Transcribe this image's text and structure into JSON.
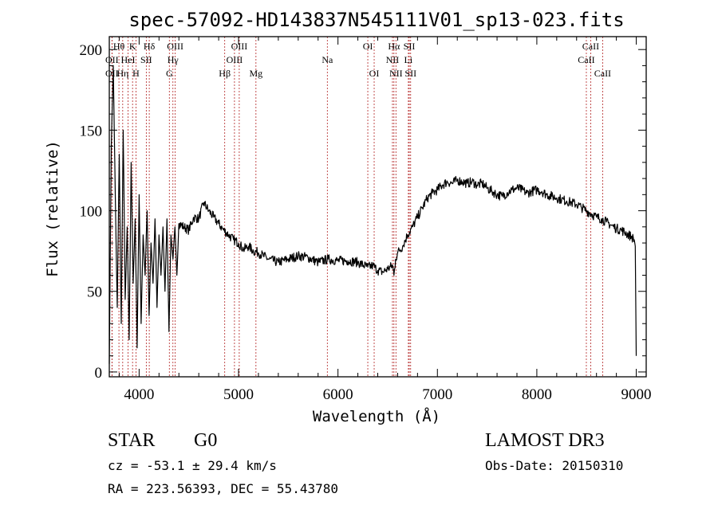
{
  "chart_data": {
    "type": "line",
    "title": "spec-57092-HD143837N545111V01_sp13-023.fits",
    "xlabel": "Wavelength (Å)",
    "ylabel": "Flux (relative)",
    "xlim": [
      3700,
      9100
    ],
    "ylim": [
      -3,
      208
    ],
    "xticks": [
      4000,
      5000,
      6000,
      7000,
      8000,
      9000
    ],
    "yticks": [
      0,
      50,
      100,
      150,
      200
    ],
    "grid": false,
    "series": [
      {
        "name": "flux",
        "x": [
          3700,
          3720,
          3740,
          3760,
          3780,
          3800,
          3820,
          3840,
          3860,
          3880,
          3900,
          3920,
          3940,
          3960,
          3980,
          4000,
          4020,
          4040,
          4060,
          4080,
          4100,
          4120,
          4140,
          4160,
          4180,
          4200,
          4220,
          4240,
          4260,
          4280,
          4300,
          4320,
          4340,
          4360,
          4380,
          4400,
          4450,
          4500,
          4550,
          4600,
          4650,
          4700,
          4750,
          4800,
          4850,
          4900,
          4950,
          5000,
          5050,
          5100,
          5150,
          5200,
          5250,
          5300,
          5400,
          5500,
          5600,
          5700,
          5800,
          5900,
          6000,
          6100,
          6200,
          6300,
          6350,
          6400,
          6450,
          6500,
          6550,
          6563,
          6580,
          6600,
          6650,
          6700,
          6750,
          6800,
          6850,
          6900,
          6950,
          7000,
          7050,
          7100,
          7150,
          7200,
          7250,
          7300,
          7350,
          7400,
          7450,
          7500,
          7550,
          7600,
          7650,
          7700,
          7750,
          7800,
          7850,
          7900,
          7950,
          8000,
          8050,
          8100,
          8150,
          8200,
          8250,
          8300,
          8350,
          8400,
          8450,
          8500,
          8550,
          8600,
          8650,
          8700,
          8750,
          8800,
          8850,
          8900,
          8950,
          8980,
          8990,
          9000
        ],
        "y": [
          5,
          140,
          190,
          110,
          40,
          135,
          30,
          150,
          45,
          90,
          20,
          130,
          55,
          95,
          15,
          110,
          30,
          85,
          60,
          100,
          35,
          80,
          55,
          95,
          40,
          85,
          60,
          90,
          50,
          95,
          25,
          85,
          70,
          90,
          60,
          92,
          90,
          88,
          96,
          95,
          105,
          100,
          96,
          92,
          88,
          85,
          82,
          80,
          76,
          78,
          75,
          74,
          72,
          70,
          68,
          70,
          72,
          71,
          68,
          70,
          69,
          69,
          68,
          65,
          66,
          63,
          62,
          64,
          66,
          60,
          70,
          74,
          78,
          85,
          90,
          96,
          102,
          108,
          111,
          113,
          116,
          118,
          117,
          119,
          118,
          117,
          118,
          116,
          117,
          114,
          112,
          110,
          109,
          111,
          113,
          114,
          113,
          111,
          112,
          113,
          112,
          110,
          109,
          108,
          107,
          106,
          105,
          104,
          102,
          100,
          98,
          96,
          95,
          93,
          91,
          89,
          88,
          86,
          84,
          82,
          78,
          10
        ]
      }
    ],
    "emission_lines": [
      {
        "label": "OII",
        "wavelength": 3727,
        "row": 1
      },
      {
        "label": "OII",
        "wavelength": 3727,
        "row": 2
      },
      {
        "label": "Hθ",
        "wavelength": 3797,
        "row": 0
      },
      {
        "label": "Hη",
        "wavelength": 3835,
        "row": 2
      },
      {
        "label": "HeI",
        "wavelength": 3889,
        "row": 1
      },
      {
        "label": "K",
        "wavelength": 3934,
        "row": 0
      },
      {
        "label": "H",
        "wavelength": 3968,
        "row": 2
      },
      {
        "label": "SII",
        "wavelength": 4072,
        "row": 1
      },
      {
        "label": "Hδ",
        "wavelength": 4102,
        "row": 0
      },
      {
        "label": "G",
        "wavelength": 4304,
        "row": 2
      },
      {
        "label": "OIII",
        "wavelength": 4363,
        "row": 0
      },
      {
        "label": "Hγ",
        "wavelength": 4340,
        "row": 1
      },
      {
        "label": "Hβ",
        "wavelength": 4861,
        "row": 2
      },
      {
        "label": "OIII",
        "wavelength": 4959,
        "row": 1
      },
      {
        "label": "OIII",
        "wavelength": 5007,
        "row": 0
      },
      {
        "label": "Mg",
        "wavelength": 5175,
        "row": 2
      },
      {
        "label": "Na",
        "wavelength": 5893,
        "row": 1
      },
      {
        "label": "OI",
        "wavelength": 6300,
        "row": 0
      },
      {
        "label": "OI",
        "wavelength": 6364,
        "row": 2
      },
      {
        "label": "NII",
        "wavelength": 6548,
        "row": 1
      },
      {
        "label": "Hα",
        "wavelength": 6563,
        "row": 0
      },
      {
        "label": "NII",
        "wavelength": 6583,
        "row": 2
      },
      {
        "label": "SII",
        "wavelength": 6717,
        "row": 0
      },
      {
        "label": "SII",
        "wavelength": 6731,
        "row": 2
      },
      {
        "label": "Li",
        "wavelength": 6708,
        "row": 1
      },
      {
        "label": "CaII",
        "wavelength": 8498,
        "row": 1
      },
      {
        "label": "CaII",
        "wavelength": 8542,
        "row": 0
      },
      {
        "label": "CaII",
        "wavelength": 8662,
        "row": 2
      }
    ]
  },
  "info": {
    "object_type": "STAR",
    "subclass": "G0",
    "survey": "LAMOST DR3",
    "redshift": "cz = -53.1 ± 29.4 km/s",
    "obs_date": "Obs-Date: 20150310",
    "coordinates": "RA = 223.56393, DEC =  55.43780"
  },
  "colors": {
    "spectrum": "#000000",
    "line_markers": "#b22222",
    "axes": "#000000",
    "background": "#ffffff"
  }
}
